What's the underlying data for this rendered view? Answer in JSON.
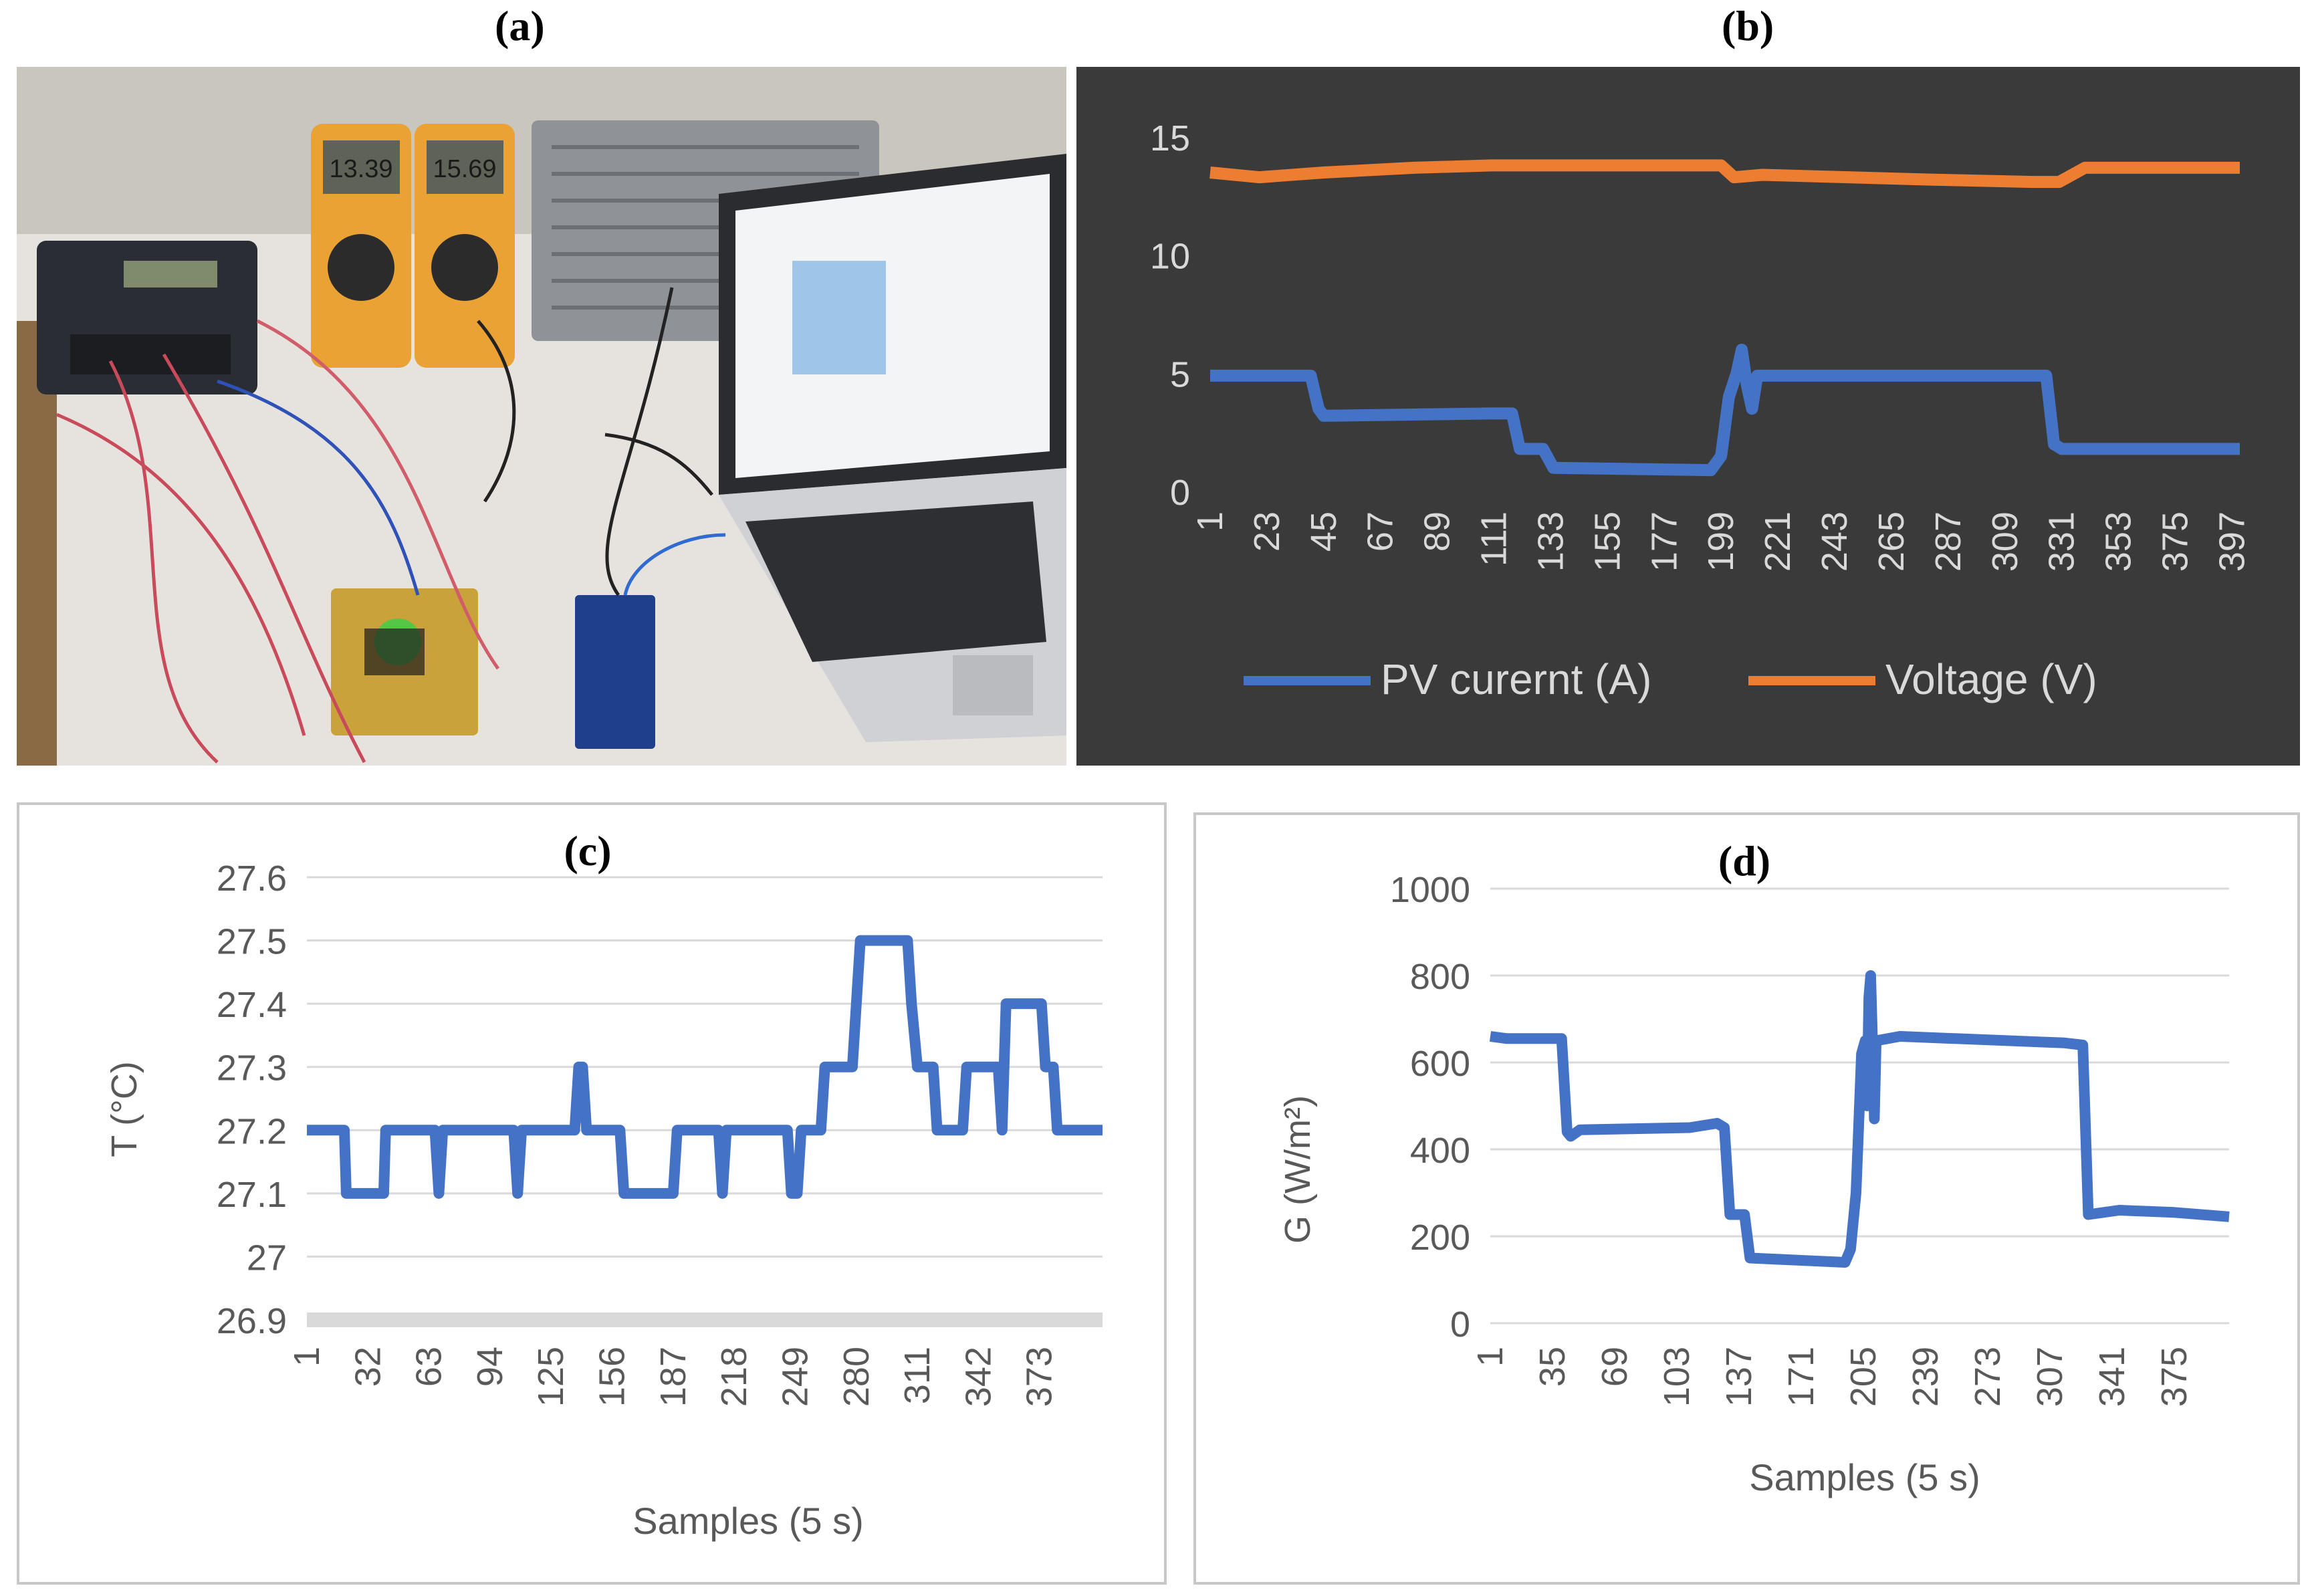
{
  "figure": {
    "panel_labels": {
      "a": "(a)",
      "b": "(b)",
      "c": "(c)",
      "d": "(d)"
    }
  },
  "photo": {
    "description_label": "Experimental setup photo",
    "meter1_reading": "13.39",
    "meter2_reading": "15.69"
  },
  "chart_data": [
    {
      "id": "b",
      "type": "line",
      "title": "",
      "xlabel": "",
      "ylabel": "",
      "ylim": [
        0,
        15
      ],
      "yticks": [
        0,
        5,
        10,
        15
      ],
      "x_tick_labels": [
        "1",
        "23",
        "45",
        "67",
        "89",
        "111",
        "133",
        "155",
        "177",
        "199",
        "221",
        "243",
        "265",
        "287",
        "309",
        "331",
        "353",
        "375",
        "397"
      ],
      "xlim": [
        1,
        400
      ],
      "legend": [
        "PV curernt (A)",
        "Voltage (V)"
      ],
      "colors": {
        "current": "#4472C4",
        "voltage": "#ED7D31",
        "background": "#3a3a3a",
        "text": "#d9d9d9"
      },
      "series": [
        {
          "name": "PV curernt (A)",
          "points": [
            [
              1,
              4.9
            ],
            [
              40,
              4.9
            ],
            [
              43,
              3.5
            ],
            [
              45,
              3.2
            ],
            [
              110,
              3.3
            ],
            [
              118,
              3.3
            ],
            [
              121,
              1.8
            ],
            [
              130,
              1.8
            ],
            [
              134,
              1.0
            ],
            [
              195,
              0.9
            ],
            [
              199,
              1.5
            ],
            [
              202,
              4.0
            ],
            [
              205,
              5.0
            ],
            [
              207,
              6.0
            ],
            [
              209,
              4.5
            ],
            [
              211,
              3.5
            ],
            [
              213,
              4.9
            ],
            [
              325,
              4.9
            ],
            [
              328,
              2.0
            ],
            [
              331,
              1.8
            ],
            [
              400,
              1.8
            ]
          ]
        },
        {
          "name": "Voltage (V)",
          "points": [
            [
              1,
              13.5
            ],
            [
              20,
              13.3
            ],
            [
              45,
              13.5
            ],
            [
              80,
              13.7
            ],
            [
              110,
              13.8
            ],
            [
              199,
              13.8
            ],
            [
              204,
              13.3
            ],
            [
              215,
              13.4
            ],
            [
              280,
              13.2
            ],
            [
              320,
              13.1
            ],
            [
              330,
              13.1
            ],
            [
              340,
              13.7
            ],
            [
              400,
              13.7
            ]
          ]
        }
      ]
    },
    {
      "id": "c",
      "type": "line",
      "title": "(c)",
      "xlabel": "Samples (5 s)",
      "ylabel": "T (°C)",
      "ylim": [
        26.9,
        27.6
      ],
      "yticks": [
        "26.9",
        "27",
        "27.1",
        "27.2",
        "27.3",
        "27.4",
        "27.5",
        "27.6"
      ],
      "x_tick_labels": [
        "1",
        "32",
        "63",
        "94",
        "125",
        "156",
        "187",
        "218",
        "249",
        "280",
        "311",
        "342",
        "373"
      ],
      "xlim": [
        1,
        405
      ],
      "color": "#4472C4",
      "series": [
        {
          "name": "T",
          "points": [
            [
              1,
              27.2
            ],
            [
              20,
              27.2
            ],
            [
              21,
              27.1
            ],
            [
              40,
              27.1
            ],
            [
              41,
              27.2
            ],
            [
              66,
              27.2
            ],
            [
              68,
              27.1
            ],
            [
              70,
              27.2
            ],
            [
              106,
              27.2
            ],
            [
              108,
              27.1
            ],
            [
              110,
              27.2
            ],
            [
              137,
              27.2
            ],
            [
              139,
              27.3
            ],
            [
              141,
              27.3
            ],
            [
              143,
              27.2
            ],
            [
              160,
              27.2
            ],
            [
              162,
              27.1
            ],
            [
              187,
              27.1
            ],
            [
              189,
              27.2
            ],
            [
              210,
              27.2
            ],
            [
              212,
              27.1
            ],
            [
              214,
              27.2
            ],
            [
              245,
              27.2
            ],
            [
              247,
              27.1
            ],
            [
              250,
              27.1
            ],
            [
              252,
              27.2
            ],
            [
              262,
              27.2
            ],
            [
              264,
              27.3
            ],
            [
              278,
              27.3
            ],
            [
              280,
              27.4
            ],
            [
              282,
              27.5
            ],
            [
              306,
              27.5
            ],
            [
              308,
              27.4
            ],
            [
              311,
              27.3
            ],
            [
              319,
              27.3
            ],
            [
              321,
              27.2
            ],
            [
              334,
              27.2
            ],
            [
              336,
              27.3
            ],
            [
              352,
              27.3
            ],
            [
              354,
              27.2
            ],
            [
              356,
              27.4
            ],
            [
              374,
              27.4
            ],
            [
              376,
              27.3
            ],
            [
              380,
              27.3
            ],
            [
              382,
              27.2
            ],
            [
              405,
              27.2
            ]
          ]
        }
      ]
    },
    {
      "id": "d",
      "type": "line",
      "title": "(d)",
      "xlabel": "Samples (5 s)",
      "ylabel": "G (W/m²)",
      "ylim": [
        0,
        1000
      ],
      "yticks": [
        0,
        200,
        400,
        600,
        800,
        1000
      ],
      "x_tick_labels": [
        "1",
        "35",
        "69",
        "103",
        "137",
        "171",
        "205",
        "239",
        "273",
        "307",
        "341",
        "375"
      ],
      "xlim": [
        1,
        405
      ],
      "color": "#4472C4",
      "series": [
        {
          "name": "G",
          "points": [
            [
              1,
              660
            ],
            [
              10,
              655
            ],
            [
              40,
              655
            ],
            [
              43,
              440
            ],
            [
              45,
              430
            ],
            [
              50,
              445
            ],
            [
              110,
              450
            ],
            [
              125,
              460
            ],
            [
              129,
              450
            ],
            [
              132,
              250
            ],
            [
              140,
              250
            ],
            [
              143,
              150
            ],
            [
              195,
              140
            ],
            [
              198,
              170
            ],
            [
              201,
              300
            ],
            [
              204,
              620
            ],
            [
              206,
              650
            ],
            [
              207,
              500
            ],
            [
              208,
              750
            ],
            [
              209,
              800
            ],
            [
              210,
              650
            ],
            [
              211,
              470
            ],
            [
              212,
              650
            ],
            [
              225,
              660
            ],
            [
              315,
              645
            ],
            [
              325,
              640
            ],
            [
              328,
              250
            ],
            [
              345,
              260
            ],
            [
              375,
              255
            ],
            [
              405,
              245
            ]
          ]
        }
      ]
    }
  ]
}
